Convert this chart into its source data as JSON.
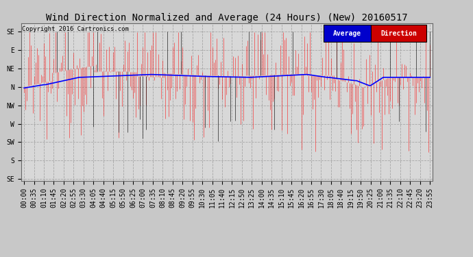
{
  "title": "Wind Direction Normalized and Average (24 Hours) (New) 20160517",
  "copyright": "Copyright 2016 Cartronics.com",
  "background_color": "#c8c8c8",
  "plot_bg_color": "#d8d8d8",
  "ytick_labels": [
    "SE",
    "E",
    "NE",
    "N",
    "NW",
    "W",
    "SW",
    "S",
    "SE"
  ],
  "ytick_values": [
    360,
    315,
    270,
    225,
    180,
    135,
    90,
    45,
    0
  ],
  "ylim": [
    -5,
    380
  ],
  "red_line_color": "#ff0000",
  "black_line_color": "#000000",
  "blue_line_color": "#0000ff",
  "legend_average_bg": "#0000cc",
  "legend_direction_bg": "#cc0000",
  "title_fontsize": 10,
  "tick_fontsize": 7,
  "xtick_labels": [
    "00:00",
    "00:35",
    "01:10",
    "01:45",
    "02:20",
    "02:55",
    "03:30",
    "04:05",
    "04:40",
    "05:15",
    "05:50",
    "06:25",
    "07:00",
    "07:35",
    "08:10",
    "08:45",
    "09:20",
    "09:55",
    "10:30",
    "11:05",
    "11:40",
    "12:15",
    "12:50",
    "13:25",
    "14:00",
    "14:35",
    "15:10",
    "15:45",
    "16:20",
    "16:55",
    "17:30",
    "18:05",
    "18:40",
    "19:15",
    "19:50",
    "20:25",
    "21:00",
    "21:35",
    "22:10",
    "22:45",
    "23:20",
    "23:55"
  ]
}
